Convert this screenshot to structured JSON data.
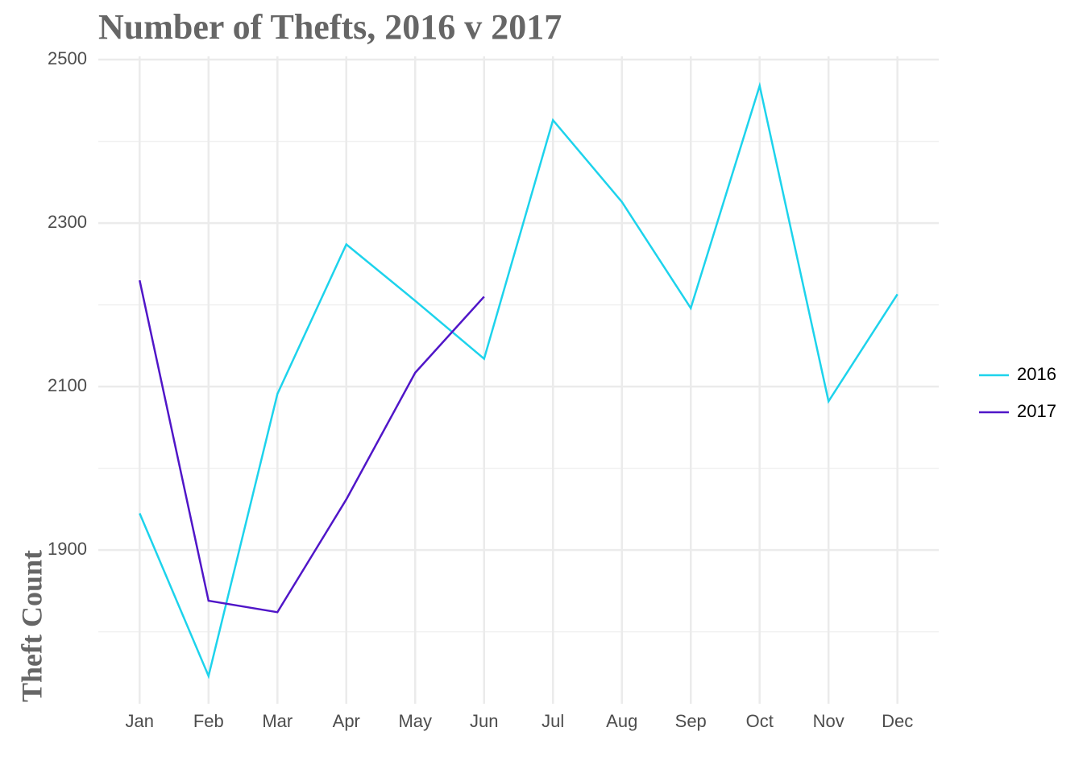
{
  "chart_data": {
    "type": "line",
    "title": "Number of Thefts, 2016 v 2017",
    "y_label": "Theft Count",
    "categories": [
      "Jan",
      "Feb",
      "Mar",
      "Apr",
      "May",
      "Jun",
      "Jul",
      "Aug",
      "Sep",
      "Oct",
      "Nov",
      "Dec"
    ],
    "series": [
      {
        "name": "2016",
        "color": "#1dd3ec",
        "values": [
          1945,
          1746,
          2091,
          2274,
          2205,
          2134,
          2426,
          2326,
          2196,
          2468,
          2082,
          2213
        ]
      },
      {
        "name": "2017",
        "color": "#5016c8",
        "values": [
          2230,
          1838,
          1824,
          1962,
          2117,
          2210,
          null,
          null,
          null,
          null,
          null,
          null
        ]
      }
    ],
    "ylim": [
      1712,
      2504
    ],
    "yticks": [
      1900,
      2100,
      2300,
      2500
    ],
    "grid": true,
    "legend": "right"
  }
}
